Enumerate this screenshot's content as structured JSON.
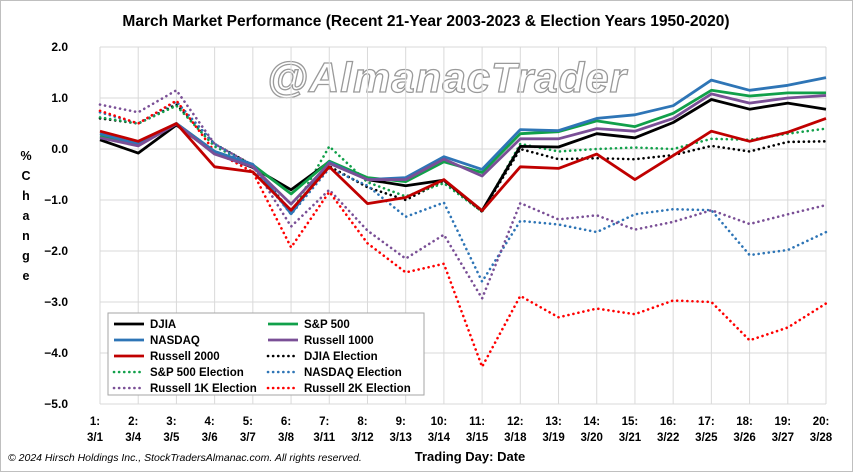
{
  "watermark": "@AlmanacTrader",
  "copyright": "© 2024 Hirsch Holdings Inc., StockTradersAlmanac.com. All rights reserved.",
  "chart_data": {
    "type": "line",
    "title": "March Market Performance (Recent 21-Year 2003-2023 & Election Years 1950-2020)",
    "xlabel": "Trading Day: Date",
    "ylabel": "% Change",
    "ylim": [
      -5.0,
      2.0
    ],
    "yticks": [
      "2.0",
      "1.0",
      "0.0",
      "−1.0",
      "−2.0",
      "−3.0",
      "−4.0",
      "−5.0"
    ],
    "ytick_values": [
      2,
      1,
      0,
      -1,
      -2,
      -3,
      -4,
      -5
    ],
    "grid": true,
    "legend_position": "bottom-left",
    "x_day": [
      "1:",
      "2:",
      "3:",
      "4:",
      "5:",
      "6:",
      "7:",
      "8:",
      "9:",
      "10:",
      "11:",
      "12:",
      "13:",
      "14:",
      "15:",
      "16:",
      "17:",
      "18:",
      "19:",
      "20:"
    ],
    "x_date": [
      "3/1",
      "3/4",
      "3/5",
      "3/6",
      "3/7",
      "3/8",
      "3/11",
      "3/12",
      "3/13",
      "3/14",
      "3/15",
      "3/18",
      "3/19",
      "3/20",
      "3/21",
      "3/22",
      "3/25",
      "3/26",
      "3/27",
      "3/28"
    ],
    "series": [
      {
        "name": "DJIA",
        "color": "#000000",
        "dash": "solid",
        "values": [
          0.18,
          -0.08,
          0.47,
          -0.08,
          -0.36,
          -0.8,
          -0.25,
          -0.6,
          -0.72,
          -0.61,
          -1.21,
          0.05,
          0.04,
          0.3,
          0.22,
          0.52,
          0.97,
          0.78,
          0.9,
          0.78
        ]
      },
      {
        "name": "S&P 500",
        "color": "#11a04a",
        "dash": "solid",
        "values": [
          0.25,
          0.08,
          0.5,
          -0.05,
          -0.31,
          -0.88,
          -0.24,
          -0.56,
          -0.64,
          -0.25,
          -0.46,
          0.3,
          0.34,
          0.55,
          0.44,
          0.7,
          1.15,
          1.04,
          1.1,
          1.1
        ]
      },
      {
        "name": "NASDAQ",
        "color": "#2e75b6",
        "dash": "solid",
        "values": [
          0.3,
          0.1,
          0.5,
          -0.05,
          -0.3,
          -1.27,
          -0.26,
          -0.6,
          -0.56,
          -0.15,
          -0.4,
          0.38,
          0.36,
          0.6,
          0.67,
          0.85,
          1.35,
          1.15,
          1.25,
          1.4
        ]
      },
      {
        "name": "Russell 1000",
        "color": "#7a4f96",
        "dash": "solid",
        "values": [
          0.22,
          0.06,
          0.49,
          -0.1,
          -0.35,
          -1.08,
          -0.28,
          -0.6,
          -0.6,
          -0.2,
          -0.53,
          0.2,
          0.2,
          0.4,
          0.35,
          0.6,
          1.08,
          0.9,
          1.0,
          1.05
        ]
      },
      {
        "name": "Russell 2000",
        "color": "#c00000",
        "dash": "solid",
        "values": [
          0.35,
          0.15,
          0.5,
          -0.35,
          -0.45,
          -1.2,
          -0.35,
          -1.07,
          -0.95,
          -0.6,
          -1.21,
          -0.35,
          -0.38,
          -0.1,
          -0.6,
          -0.13,
          0.35,
          0.15,
          0.33,
          0.6
        ]
      },
      {
        "name": "DJIA Election",
        "color": "#000000",
        "dash": "dot",
        "values": [
          0.6,
          0.5,
          0.87,
          0.1,
          -0.32,
          -1.23,
          -0.34,
          -0.75,
          -1.0,
          -0.62,
          -1.23,
          0.0,
          -0.2,
          -0.18,
          -0.2,
          -0.12,
          0.06,
          -0.05,
          0.14,
          0.15
        ]
      },
      {
        "name": "S&P 500 Election",
        "color": "#11a04a",
        "dash": "dot",
        "values": [
          0.62,
          0.5,
          0.85,
          0.05,
          -0.32,
          -1.26,
          0.05,
          -0.65,
          -0.93,
          -0.67,
          -1.23,
          0.1,
          -0.05,
          0.0,
          0.03,
          0.0,
          0.2,
          0.18,
          0.3,
          0.4
        ]
      },
      {
        "name": "NASDAQ Election",
        "color": "#2e75b6",
        "dash": "dot",
        "values": [
          0.72,
          0.5,
          0.93,
          0.1,
          -0.35,
          -1.28,
          -0.38,
          -0.72,
          -1.33,
          -1.05,
          -2.6,
          -1.41,
          -1.48,
          -1.63,
          -1.28,
          -1.18,
          -1.2,
          -2.08,
          -1.98,
          -1.63
        ]
      },
      {
        "name": "Russell 1K Election",
        "color": "#7a4f96",
        "dash": "dot",
        "values": [
          0.87,
          0.72,
          1.15,
          0.1,
          -0.32,
          -1.52,
          -0.8,
          -1.6,
          -2.15,
          -1.68,
          -2.93,
          -1.06,
          -1.38,
          -1.3,
          -1.58,
          -1.43,
          -1.2,
          -1.47,
          -1.28,
          -1.1
        ]
      },
      {
        "name": "Russell 2K Election",
        "color": "#ff0000",
        "dash": "dot",
        "values": [
          0.75,
          0.5,
          0.95,
          -0.05,
          -0.45,
          -1.93,
          -0.84,
          -1.85,
          -2.42,
          -2.25,
          -4.27,
          -2.88,
          -3.3,
          -3.13,
          -3.24,
          -2.97,
          -3.0,
          -3.75,
          -3.5,
          -3.03
        ]
      }
    ]
  }
}
